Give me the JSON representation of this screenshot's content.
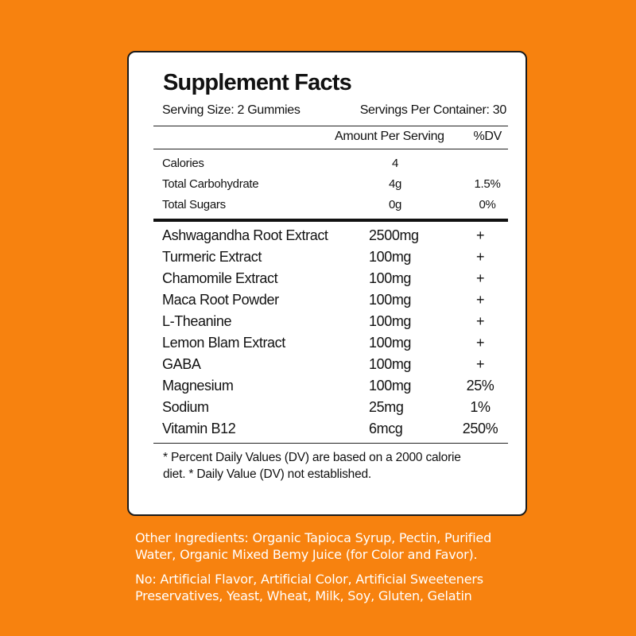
{
  "panel": {
    "title": "Supplement Facts",
    "serving_size": "Serving Size: 2 Gummies",
    "servings_per_container": "Servings Per Container: 30",
    "header_amount": "Amount Per Serving",
    "header_dv": "%DV",
    "basic_rows": [
      {
        "name": "Calories",
        "amount": "4",
        "dv": ""
      },
      {
        "name": "Total Carbohydrate",
        "amount": "4g",
        "dv": "1.5%"
      },
      {
        "name": "Total Sugars",
        "amount": "0g",
        "dv": "0%"
      }
    ],
    "ingredient_rows": [
      {
        "name": "Ashwagandha Root Extract",
        "amount": "2500mg",
        "dv": "+"
      },
      {
        "name": "Turmeric Extract",
        "amount": "100mg",
        "dv": "+"
      },
      {
        "name": "Chamomile Extract",
        "amount": "100mg",
        "dv": "+"
      },
      {
        "name": "Maca Root Powder",
        "amount": "100mg",
        "dv": "+"
      },
      {
        "name": "L-Theanine",
        "amount": "100mg",
        "dv": "+"
      },
      {
        "name": "Lemon Blam Extract",
        "amount": "100mg",
        "dv": "+"
      },
      {
        "name": "GABA",
        "amount": "100mg",
        "dv": "+"
      },
      {
        "name": "Magnesium",
        "amount": "100mg",
        "dv": "25%"
      },
      {
        "name": "Sodium",
        "amount": "25mg",
        "dv": "1%"
      },
      {
        "name": "Vitamin B12",
        "amount": "6mcg",
        "dv": "250%"
      }
    ],
    "footnote_line1": "* Percent Daily Values (DV) are based on a 2000 calorie",
    "footnote_line2": "diet. * Daily Value (DV) not established."
  },
  "other_ingredients": {
    "line1": "Other Ingredients: Organic Tapioca Syrup, Pectin, Purified",
    "line2": "Water, Organic Mixed Bemy Juice (for Color and Favor)."
  },
  "exclusions": {
    "line1": "No: Artificial Flavor, Artificial Color, Artificial Sweeteners",
    "line2": "Preservatives, Yeast, Wheat, Milk, Soy, Gluten, Gelatin"
  },
  "colors": {
    "background": "#F7820F",
    "panel": "#FFFFFF",
    "text": "#111111",
    "bottom_text": "#FFFFFF"
  }
}
